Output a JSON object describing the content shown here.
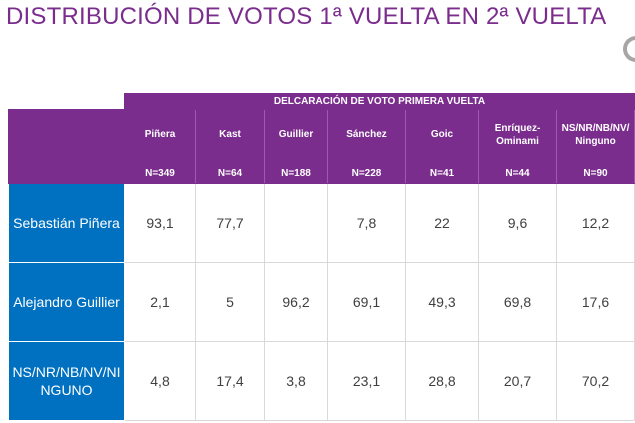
{
  "slide": {
    "title": "DISTRIBUCIÓN DE VOTOS 1ª VUELTA EN 2ª  VUELTA",
    "corner_icon": "circle-arc-icon"
  },
  "table": {
    "banner": "DELCARACIÓN DE VOTO PRIMERA VUELTA",
    "columns": [
      {
        "label": "Piñera",
        "n": "N=349"
      },
      {
        "label": "Kast",
        "n": "N=64"
      },
      {
        "label": "Guillier",
        "n": "N=188"
      },
      {
        "label": "Sánchez",
        "n": "N=228"
      },
      {
        "label": "Goic",
        "n": "N=41"
      },
      {
        "label": "Enríquez-Ominami",
        "n": "N=44"
      },
      {
        "label": "NS/NR/NB/NV/Ninguno",
        "n": "N=90"
      }
    ],
    "rows": [
      {
        "label": "Sebastián Piñera",
        "values": [
          "93,1",
          "77,7",
          "",
          "7,8",
          "22",
          "9,6",
          "12,2"
        ]
      },
      {
        "label": "Alejandro Guillier",
        "values": [
          "2,1",
          "5",
          "96,2",
          "69,1",
          "49,3",
          "69,8",
          "17,6"
        ]
      },
      {
        "label": "NS/NR/NB/NV/NINGUNO",
        "values": [
          "4,8",
          "17,4",
          "3,8",
          "23,1",
          "28,8",
          "20,7",
          "70,2"
        ]
      }
    ]
  },
  "colors": {
    "purple": "#7b2d8e",
    "blue": "#0070c0"
  }
}
